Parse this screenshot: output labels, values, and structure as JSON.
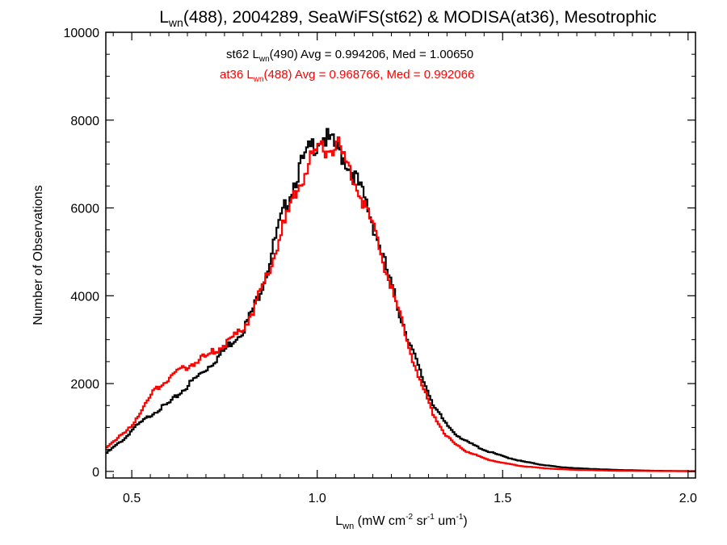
{
  "chart_data": {
    "type": "line",
    "title": {
      "main": "L",
      "main_sub": "wn",
      "rest": "(488), 2004289, SeaWiFS(st62) & MODISA(at36), Mesotrophic"
    },
    "xlabel": {
      "p1": "L",
      "p1_sub": "wn",
      "p2": " (mW cm",
      "p2_sup": "-2",
      "p3": " sr",
      "p3_sup": "-1",
      "p4": " um",
      "p4_sup": "-1",
      "p5": ")"
    },
    "ylabel": "Number of Observations",
    "xlim": [
      0.43,
      2.02
    ],
    "ylim": [
      -150,
      10000
    ],
    "xticks": [
      0.5,
      1.0,
      1.5,
      2.0
    ],
    "xtick_labels": [
      "0.5",
      "1.0",
      "1.5",
      "2.0"
    ],
    "yticks": [
      0,
      2000,
      4000,
      6000,
      8000,
      10000
    ],
    "ytick_labels": [
      "0",
      "2000",
      "4000",
      "6000",
      "8000",
      "10000"
    ],
    "legend": {
      "line1": {
        "a": "st62 L",
        "sub": "wn",
        "b": "(490) Avg = 0.994206, Med = 1.00650",
        "color": "#000000"
      },
      "line2": {
        "a": "at36 L",
        "sub": "wn",
        "b": "(488) Avg = 0.968766, Med = 0.992066",
        "color": "#ff0000"
      }
    },
    "series": [
      {
        "color": "#000000",
        "x": [
          0.43,
          0.45,
          0.48,
          0.5,
          0.53,
          0.56,
          0.6,
          0.63,
          0.66,
          0.7,
          0.73,
          0.76,
          0.8,
          0.83,
          0.86,
          0.89,
          0.92,
          0.95,
          0.98,
          1.0,
          1.01,
          1.03,
          1.05,
          1.07,
          1.1,
          1.13,
          1.16,
          1.19,
          1.22,
          1.25,
          1.28,
          1.31,
          1.34,
          1.37,
          1.4,
          1.45,
          1.5,
          1.55,
          1.6,
          1.65,
          1.7,
          1.8,
          1.9,
          2.02
        ],
        "y": [
          420,
          560,
          760,
          960,
          1160,
          1360,
          1560,
          1800,
          2050,
          2350,
          2600,
          2880,
          3250,
          3800,
          4500,
          5450,
          6250,
          6900,
          7350,
          7550,
          7650,
          7500,
          7350,
          7150,
          6700,
          6100,
          5300,
          4450,
          3600,
          2850,
          2150,
          1550,
          1120,
          860,
          680,
          480,
          340,
          230,
          155,
          100,
          70,
          35,
          15,
          5
        ]
      },
      {
        "color": "#ff0000",
        "x": [
          0.43,
          0.45,
          0.48,
          0.5,
          0.53,
          0.56,
          0.6,
          0.63,
          0.66,
          0.7,
          0.73,
          0.76,
          0.8,
          0.83,
          0.86,
          0.89,
          0.92,
          0.95,
          0.98,
          1.0,
          1.01,
          1.03,
          1.05,
          1.07,
          1.1,
          1.13,
          1.16,
          1.19,
          1.22,
          1.25,
          1.28,
          1.31,
          1.34,
          1.37,
          1.4,
          1.45,
          1.5,
          1.55,
          1.6,
          1.65,
          1.7,
          1.8,
          1.9,
          2.02
        ],
        "y": [
          560,
          700,
          880,
          1080,
          1480,
          1850,
          2150,
          2300,
          2450,
          2620,
          2780,
          2950,
          3300,
          3750,
          4400,
          5150,
          5900,
          6600,
          7100,
          7350,
          7350,
          7350,
          7420,
          7150,
          6600,
          6000,
          5250,
          4400,
          3550,
          2700,
          1950,
          1320,
          880,
          620,
          460,
          290,
          190,
          120,
          80,
          50,
          35,
          15,
          8,
          3
        ]
      }
    ]
  }
}
